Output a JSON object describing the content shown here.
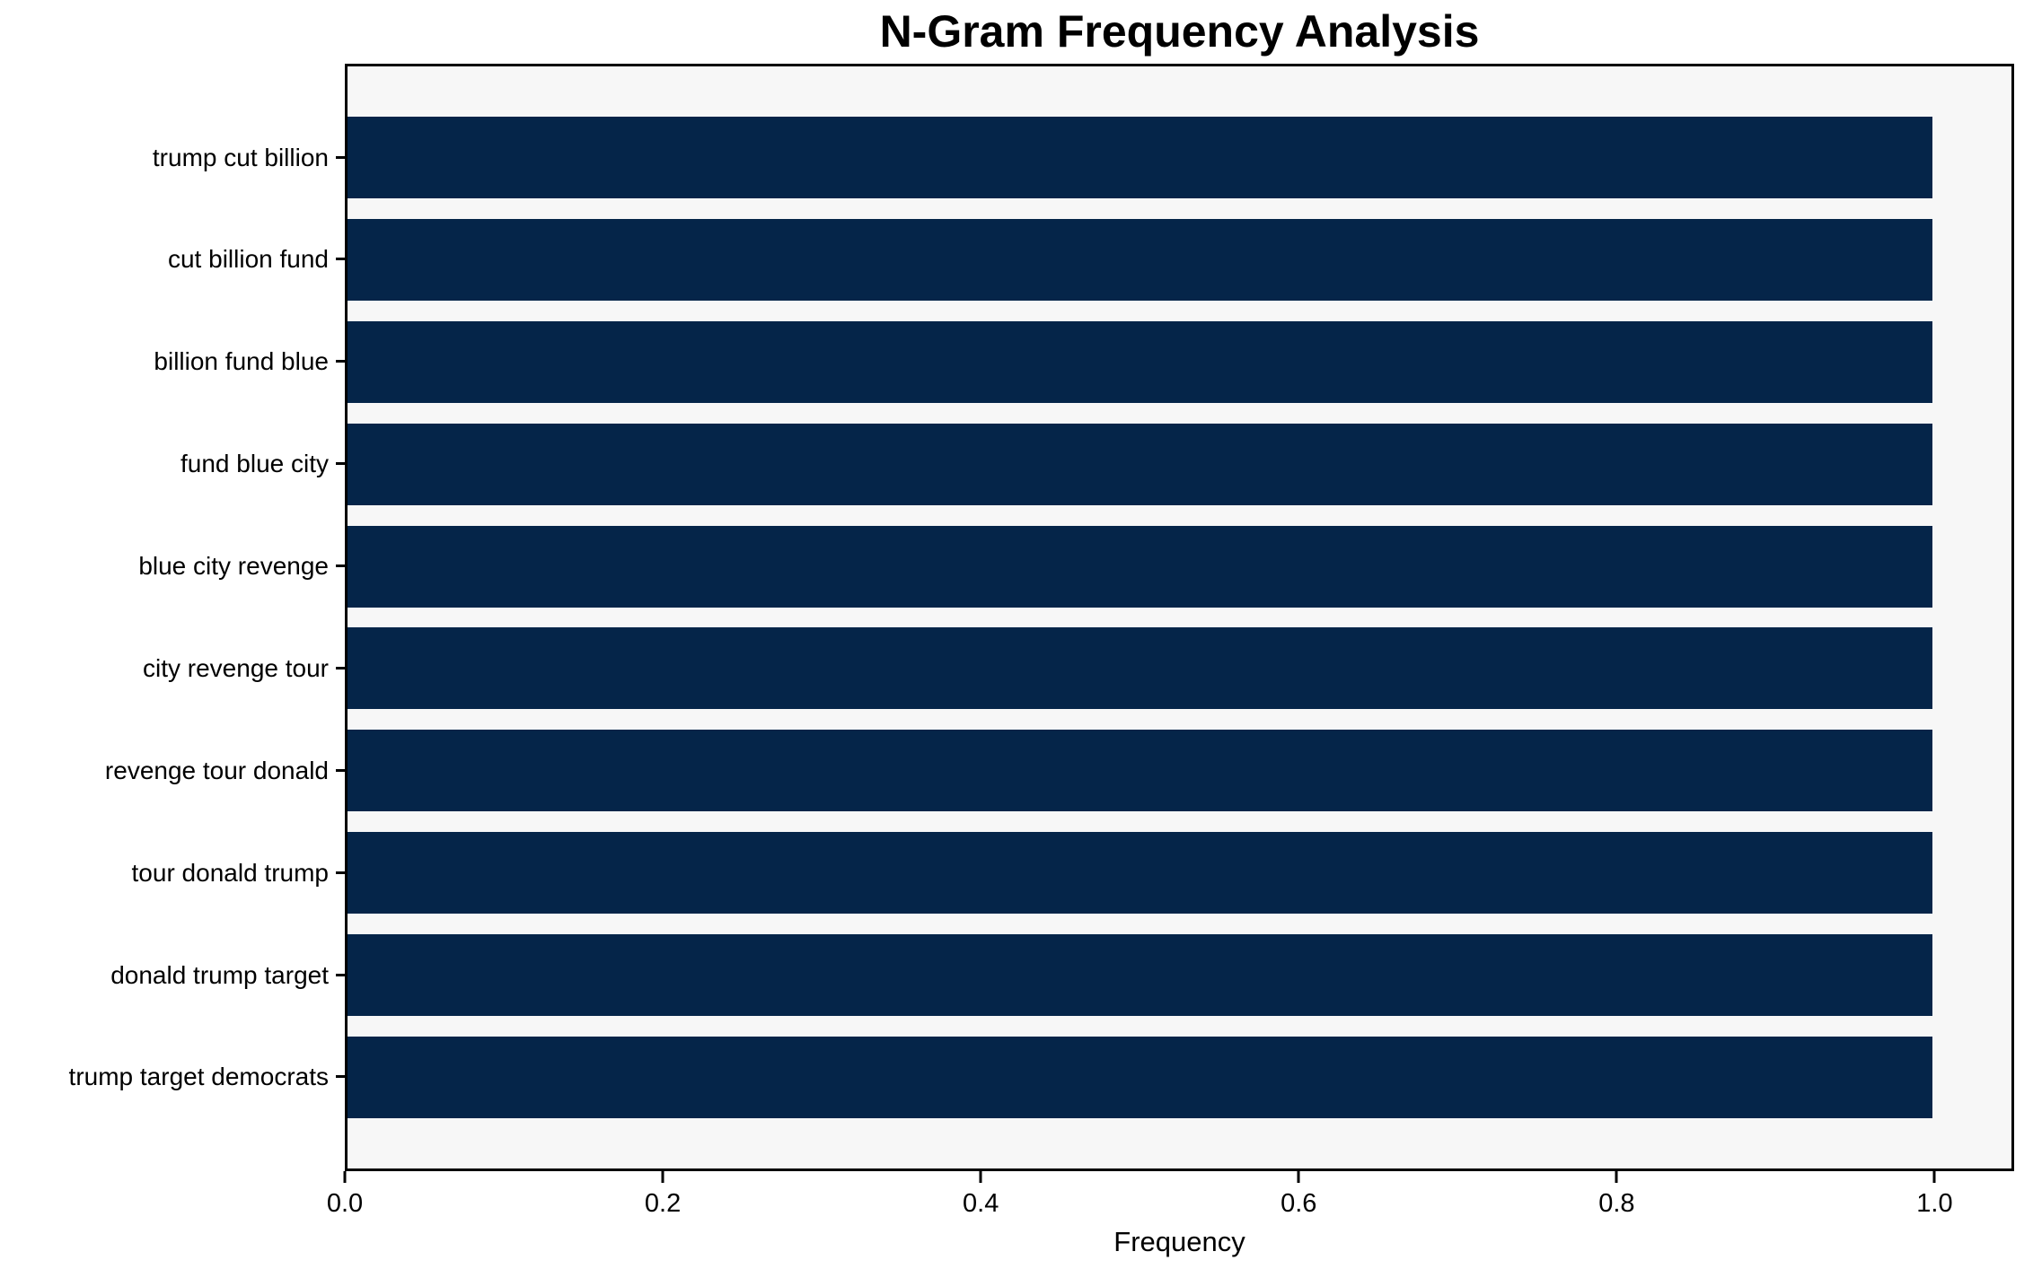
{
  "chart_data": {
    "type": "bar",
    "orientation": "horizontal",
    "title": "N-Gram Frequency Analysis",
    "xlabel": "Frequency",
    "ylabel": "",
    "categories": [
      "trump cut billion",
      "cut billion fund",
      "billion fund blue",
      "fund blue city",
      "blue city revenge",
      "city revenge tour",
      "revenge tour donald",
      "tour donald trump",
      "donald trump target",
      "trump target democrats"
    ],
    "values": [
      1.0,
      1.0,
      1.0,
      1.0,
      1.0,
      1.0,
      1.0,
      1.0,
      1.0,
      1.0
    ],
    "xlim": [
      0,
      1.05
    ],
    "x_ticks": [
      0.0,
      0.2,
      0.4,
      0.6,
      0.8,
      1.0
    ],
    "x_tick_labels": [
      "0.0",
      "0.2",
      "0.4",
      "0.6",
      "0.8",
      "1.0"
    ],
    "bar_color": "#052549",
    "plot_bg": "#f7f7f7",
    "figure_bg": "#ffffff",
    "spine_color": "#000000",
    "grid": false,
    "legend": false
  }
}
